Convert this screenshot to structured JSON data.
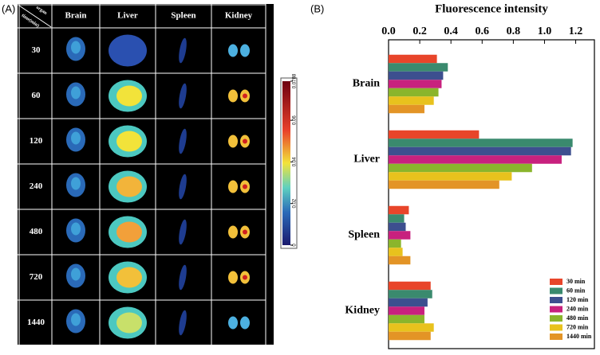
{
  "panel_a": {
    "label": "(A)",
    "corner_top": "organ",
    "corner_bottom": "time(min)",
    "columns": [
      "Brain",
      "Liver",
      "Spleen",
      "Kidney"
    ],
    "rows": [
      "30",
      "60",
      "120",
      "240",
      "480",
      "720",
      "1440"
    ],
    "colorbar_ticks": [
      0,
      0.02,
      0.04,
      0.06,
      0.0788
    ]
  },
  "chart_data": {
    "type": "hbar",
    "panel_label": "(B)",
    "title": "Fluorescence intensity",
    "categories": [
      "Brain",
      "Liver",
      "Spleen",
      "Kidney"
    ],
    "series": [
      {
        "name": "30 min",
        "color": "#e8452a",
        "values": [
          0.31,
          0.58,
          0.13,
          0.27
        ]
      },
      {
        "name": "60 min",
        "color": "#3a8a6e",
        "values": [
          0.38,
          1.18,
          0.1,
          0.28
        ]
      },
      {
        "name": "120 min",
        "color": "#3d4f8f",
        "values": [
          0.35,
          1.17,
          0.11,
          0.25
        ]
      },
      {
        "name": "240 min",
        "color": "#c8217e",
        "values": [
          0.34,
          1.11,
          0.14,
          0.23
        ]
      },
      {
        "name": "480 min",
        "color": "#8ab52c",
        "values": [
          0.32,
          0.92,
          0.08,
          0.23
        ]
      },
      {
        "name": "720 min",
        "color": "#e8c21d",
        "values": [
          0.29,
          0.79,
          0.09,
          0.29
        ]
      },
      {
        "name": "1440 min",
        "color": "#e39426",
        "values": [
          0.23,
          0.71,
          0.14,
          0.27
        ]
      }
    ],
    "xlim": [
      0,
      1.32
    ],
    "xticks": [
      {
        "value": 0,
        "label": "0.0"
      },
      0.2,
      0.4,
      0.6,
      0.8,
      {
        "value": 1,
        "label": "1.0"
      },
      1.2
    ],
    "legend": "bottom-right"
  }
}
